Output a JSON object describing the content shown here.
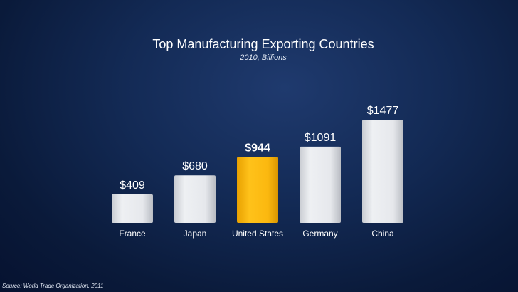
{
  "chart_data": {
    "type": "bar",
    "title": "Top Manufacturing Exporting Countries",
    "subtitle": "2010, Billions",
    "categories": [
      "France",
      "Japan",
      "United States",
      "Germany",
      "China"
    ],
    "values": [
      409,
      680,
      944,
      1091,
      1477
    ],
    "value_labels": [
      "$409",
      "$680",
      "$944",
      "$1091",
      "$1477"
    ],
    "highlight_index": 2,
    "colors": {
      "bar": "#e4e6ea",
      "highlight": "#f7b40a",
      "text": "#ffffff"
    },
    "grid": false,
    "legend": "none",
    "ylim": [
      0,
      1477
    ]
  },
  "source": "Source: World Trade Organization, 2011"
}
